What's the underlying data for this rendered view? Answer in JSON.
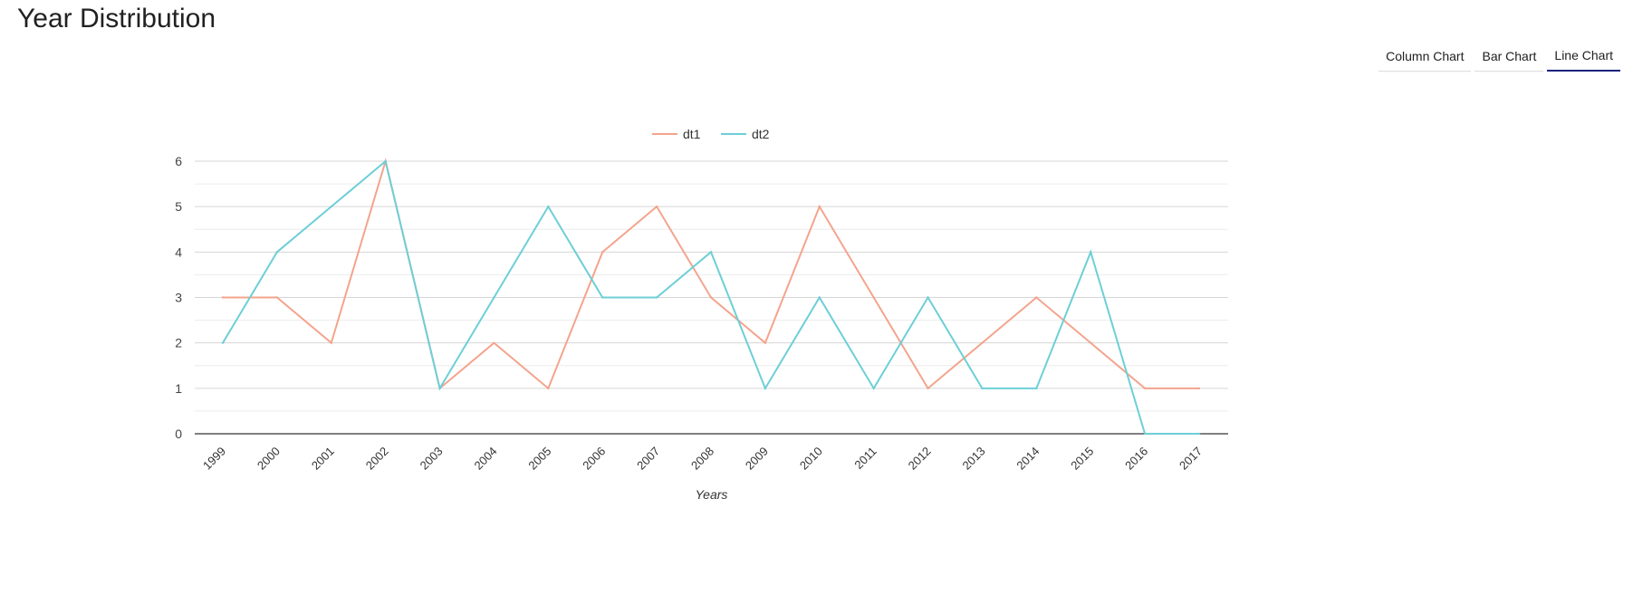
{
  "page": {
    "title": "Year Distribution"
  },
  "tabs": [
    {
      "label": "Column Chart",
      "active": false
    },
    {
      "label": "Bar Chart",
      "active": false
    },
    {
      "label": "Line Chart",
      "active": true
    }
  ],
  "colors": {
    "dt1": "#f4a48d",
    "dt2": "#6dcfd6",
    "active_tab_underline": "#1a237e",
    "grid": "#dddddd",
    "axis": "#333333"
  },
  "chart_data": {
    "type": "line",
    "title": "",
    "xlabel": "Years",
    "ylabel": "",
    "ylim": [
      0,
      6
    ],
    "yticks": [
      0,
      1,
      2,
      3,
      4,
      5,
      6
    ],
    "grid": true,
    "legend_position": "top-center",
    "categories": [
      "1999",
      "2000",
      "2001",
      "2002",
      "2003",
      "2004",
      "2005",
      "2006",
      "2007",
      "2008",
      "2009",
      "2010",
      "2011",
      "2012",
      "2013",
      "2014",
      "2015",
      "2016",
      "2017"
    ],
    "series": [
      {
        "name": "dt1",
        "values": [
          3,
          3,
          2,
          6,
          1,
          2,
          1,
          4,
          5,
          3,
          2,
          5,
          3,
          1,
          2,
          3,
          2,
          1,
          1
        ]
      },
      {
        "name": "dt2",
        "values": [
          2,
          4,
          5,
          6,
          1,
          3,
          5,
          3,
          3,
          4,
          1,
          3,
          1,
          3,
          1,
          1,
          4,
          0,
          0
        ]
      }
    ]
  }
}
